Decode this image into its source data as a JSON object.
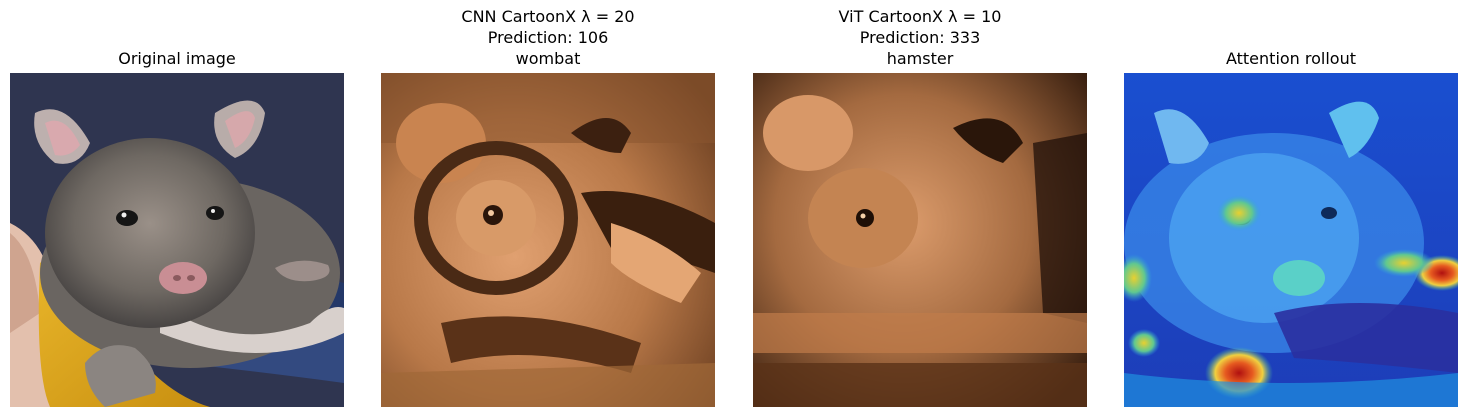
{
  "panels": [
    {
      "title_lines": [
        "Original image"
      ]
    },
    {
      "title_lines": [
        "CNN CartoonX λ = 20",
        "Prediction: 106",
        "wombat"
      ]
    },
    {
      "title_lines": [
        "ViT CartoonX λ = 10",
        "Prediction: 333",
        "hamster"
      ]
    },
    {
      "title_lines": [
        "Attention rollout"
      ]
    }
  ]
}
